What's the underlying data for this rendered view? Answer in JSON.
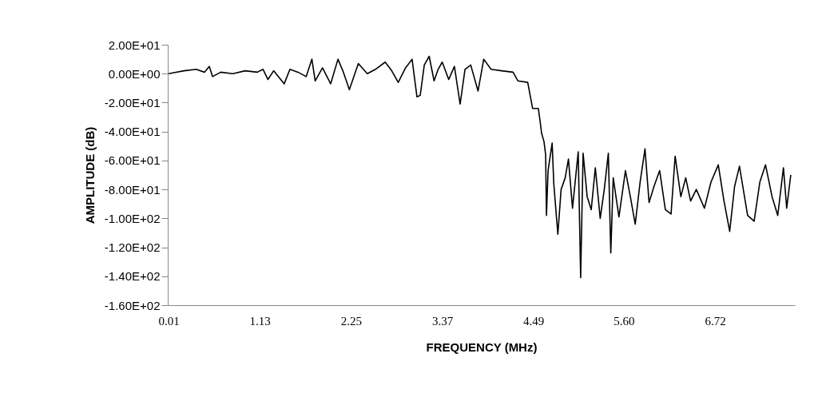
{
  "chart_data": {
    "type": "line",
    "xlabel": "FREQUENCY (MHz)",
    "ylabel": "AMPLITUDE (dB)",
    "xlim": [
      0,
      7.7
    ],
    "xticks": [
      0.01,
      1.13,
      2.25,
      3.37,
      4.49,
      {
        "value": 5.6,
        "label": "5.60"
      },
      6.72
    ],
    "ylim": [
      -160,
      20
    ],
    "yticks": [
      {
        "value": 20,
        "label": "2.00E+01"
      },
      {
        "value": 0,
        "label": "0.00E+00"
      },
      {
        "value": -20,
        "label": "-2.00E+01"
      },
      {
        "value": -40,
        "label": "-4.00E+01"
      },
      {
        "value": -60,
        "label": "-6.00E+01"
      },
      {
        "value": -80,
        "label": "-8.00E+01"
      },
      {
        "value": -100,
        "label": "-1.00E+02"
      },
      {
        "value": -120,
        "label": "-1.20E+02"
      },
      {
        "value": -140,
        "label": "-1.40E+02"
      },
      {
        "value": -160,
        "label": "-1.60E+02"
      }
    ],
    "grid": false,
    "legend": false,
    "marker": "none",
    "line_style": "solid",
    "series": [
      {
        "color": "#000000",
        "x": [
          0.01,
          0.1,
          0.2,
          0.35,
          0.45,
          0.51,
          0.55,
          0.65,
          0.8,
          0.95,
          1.1,
          1.17,
          1.23,
          1.3,
          1.43,
          1.5,
          1.6,
          1.7,
          1.77,
          1.81,
          1.9,
          2.0,
          2.09,
          2.15,
          2.23,
          2.34,
          2.45,
          2.55,
          2.67,
          2.75,
          2.83,
          2.92,
          3.0,
          3.06,
          3.1,
          3.15,
          3.21,
          3.27,
          3.32,
          3.37,
          3.45,
          3.52,
          3.59,
          3.65,
          3.72,
          3.81,
          3.88,
          3.97,
          4.1,
          4.24,
          4.3,
          4.42,
          4.45,
          4.48,
          4.55,
          4.57,
          4.59,
          4.62,
          4.64,
          4.65,
          4.67,
          4.72,
          4.74,
          4.79,
          4.83,
          4.88,
          4.92,
          4.97,
          5.04,
          5.07,
          5.1,
          5.15,
          5.2,
          5.25,
          5.31,
          5.36,
          5.41,
          5.44,
          5.47,
          5.54,
          5.62,
          5.68,
          5.74,
          5.8,
          5.86,
          5.91,
          5.97,
          6.04,
          6.11,
          6.18,
          6.23,
          6.3,
          6.36,
          6.42,
          6.49,
          6.59,
          6.67,
          6.76,
          6.83,
          6.9,
          6.96,
          7.02,
          7.12,
          7.2,
          7.27,
          7.34,
          7.42,
          7.49,
          7.56,
          7.6,
          7.65
        ],
        "values": [
          0,
          1,
          2,
          3,
          1,
          5,
          -2,
          1,
          0,
          2,
          1,
          3,
          -4,
          2,
          -7,
          3,
          1,
          -2,
          10,
          -5,
          4,
          -7,
          10,
          2,
          -11,
          7,
          0,
          3,
          8,
          2,
          -6,
          4,
          10,
          -16,
          -15,
          6,
          12,
          -5,
          3,
          8,
          -4,
          5,
          -21,
          3,
          6,
          -12,
          10,
          3,
          2,
          1,
          -5,
          -6,
          -15,
          -24,
          -24,
          -32,
          -41,
          -47,
          -56,
          -98,
          -67,
          -48,
          -76,
          -111,
          -80,
          -72,
          -59,
          -93,
          -54,
          -141,
          -55,
          -85,
          -94,
          -65,
          -100,
          -80,
          -55,
          -124,
          -72,
          -99,
          -67,
          -85,
          -104,
          -75,
          -52,
          -89,
          -78,
          -67,
          -94,
          -97,
          -57,
          -85,
          -72,
          -88,
          -80,
          -93,
          -75,
          -63,
          -88,
          -109,
          -78,
          -64,
          -98,
          -102,
          -75,
          -63,
          -85,
          -98,
          -65,
          -93,
          -70
        ]
      }
    ]
  }
}
